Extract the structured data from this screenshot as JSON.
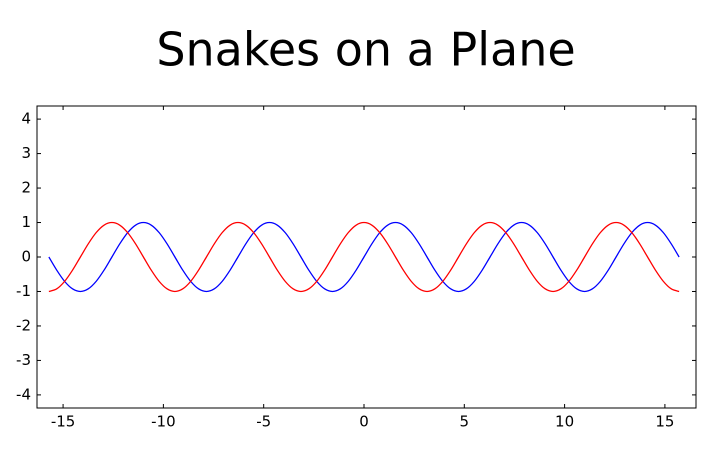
{
  "chart_data": {
    "type": "line",
    "title": "Snakes on a Plane",
    "x": [
      -15.708,
      -15.315,
      -14.923,
      -14.53,
      -14.137,
      -13.744,
      -13.352,
      -12.959,
      -12.566,
      -12.174,
      -11.781,
      -11.388,
      -10.996,
      -10.603,
      -10.21,
      -9.817,
      -9.425,
      -9.032,
      -8.639,
      -8.247,
      -7.854,
      -7.461,
      -7.069,
      -6.676,
      -6.283,
      -5.89,
      -5.498,
      -5.105,
      -4.712,
      -4.32,
      -3.927,
      -3.534,
      -3.142,
      -2.749,
      -2.356,
      -1.963,
      -1.571,
      -1.178,
      -0.785,
      -0.393,
      0,
      0.393,
      0.785,
      1.178,
      1.571,
      1.963,
      2.356,
      2.749,
      3.142,
      3.534,
      3.927,
      4.32,
      4.712,
      5.105,
      5.498,
      5.89,
      6.283,
      6.676,
      7.069,
      7.461,
      7.854,
      8.247,
      8.639,
      9.032,
      9.425,
      9.817,
      10.21,
      10.603,
      10.996,
      11.388,
      11.781,
      12.174,
      12.566,
      12.959,
      13.352,
      13.744,
      14.137,
      14.53,
      14.923,
      15.315,
      15.708
    ],
    "series": [
      {
        "color": "#0000ff",
        "values": [
          0,
          -0.383,
          -0.707,
          -0.924,
          -1,
          -0.924,
          -0.707,
          -0.383,
          0,
          0.383,
          0.707,
          0.924,
          1,
          0.924,
          0.707,
          0.383,
          0,
          -0.383,
          -0.707,
          -0.924,
          -1,
          -0.924,
          -0.707,
          -0.383,
          0,
          0.383,
          0.707,
          0.924,
          1,
          0.924,
          0.707,
          0.383,
          0,
          -0.383,
          -0.707,
          -0.924,
          -1,
          -0.924,
          -0.707,
          -0.383,
          0,
          0.383,
          0.707,
          0.924,
          1,
          0.924,
          0.707,
          0.383,
          0,
          -0.383,
          -0.707,
          -0.924,
          -1,
          -0.924,
          -0.707,
          -0.383,
          0,
          0.383,
          0.707,
          0.924,
          1,
          0.924,
          0.707,
          0.383,
          0,
          -0.383,
          -0.707,
          -0.924,
          -1,
          -0.924,
          -0.707,
          -0.383,
          0,
          0.383,
          0.707,
          0.924,
          1,
          0.924,
          0.707,
          0.383,
          0
        ]
      },
      {
        "color": "#ff0000",
        "values": [
          -1,
          -0.924,
          -0.707,
          -0.383,
          0,
          0.383,
          0.707,
          0.924,
          1,
          0.924,
          0.707,
          0.383,
          0,
          -0.383,
          -0.707,
          -0.924,
          -1,
          -0.924,
          -0.707,
          -0.383,
          0,
          0.383,
          0.707,
          0.924,
          1,
          0.924,
          0.707,
          0.383,
          0,
          -0.383,
          -0.707,
          -0.924,
          -1,
          -0.924,
          -0.707,
          -0.383,
          0,
          0.383,
          0.707,
          0.924,
          1,
          0.924,
          0.707,
          0.383,
          0,
          -0.383,
          -0.707,
          -0.924,
          -1,
          -0.924,
          -0.707,
          -0.383,
          0,
          0.383,
          0.707,
          0.924,
          1,
          0.924,
          0.707,
          0.383,
          0,
          -0.383,
          -0.707,
          -0.924,
          -1,
          -0.924,
          -0.707,
          -0.383,
          0,
          0.383,
          0.707,
          0.924,
          1,
          0.924,
          0.707,
          0.383,
          0,
          -0.383,
          -0.707,
          -0.924,
          -1
        ]
      }
    ],
    "xlim": [
      -16.3,
      16.55
    ],
    "xticks": [
      -15,
      -10,
      -5,
      0,
      5,
      10,
      15
    ],
    "ylim": [
      -4.38,
      4.38
    ],
    "yticks": [
      -4,
      -3,
      -2,
      -1,
      0,
      1,
      2,
      3,
      4
    ],
    "grid": false
  }
}
